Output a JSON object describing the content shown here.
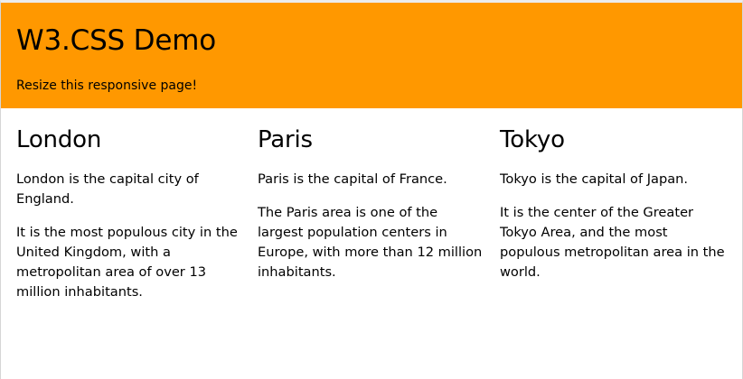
{
  "header": {
    "title": "W3.CSS Demo",
    "subtitle": "Resize this responsive page!",
    "background_color": "#ff9800"
  },
  "columns": [
    {
      "heading": "London",
      "paragraphs": [
        "London is the capital city of England.",
        "It is the most populous city in the United Kingdom, with a metropolitan area of over 13 million inhabitants."
      ]
    },
    {
      "heading": "Paris",
      "paragraphs": [
        "Paris is the capital of France.",
        "The Paris area is one of the largest population centers in Europe, with more than 12 million inhabitants."
      ]
    },
    {
      "heading": "Tokyo",
      "paragraphs": [
        "Tokyo is the capital of Japan.",
        "It is the center of the Greater Tokyo Area, and the most populous metropolitan area in the world."
      ]
    }
  ]
}
